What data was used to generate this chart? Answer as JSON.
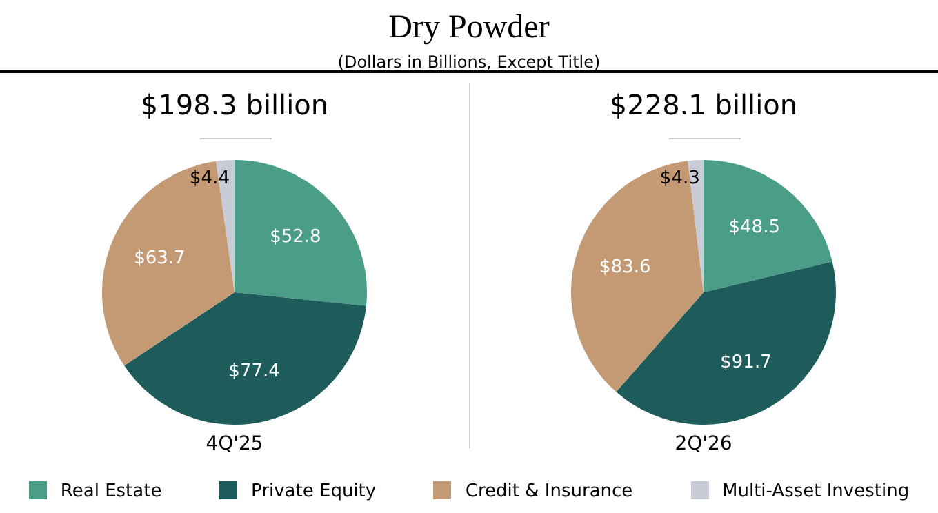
{
  "chart_data": [
    {
      "type": "pie",
      "title": "Dry Powder",
      "subtitle": "(Dollars in Billions, Except Title)",
      "annotations": [
        "$198.3 billion"
      ],
      "xlabel": "4Q'25",
      "categories": [
        "Real Estate",
        "Private Equity",
        "Credit & Insurance",
        "Multi-Asset Investing"
      ],
      "values": [
        52.8,
        77.4,
        63.7,
        4.4
      ],
      "value_labels": [
        "$52.8",
        "$77.4",
        "$63.7",
        "$4.4"
      ],
      "colors": [
        "#4a9e87",
        "#1d5c5a",
        "#c49a74",
        "#c8ccd6"
      ],
      "legend": "bottom"
    },
    {
      "type": "pie",
      "annotations": [
        "$228.1 billion"
      ],
      "xlabel": "2Q'26",
      "categories": [
        null,
        null,
        null,
        null
      ],
      "values": [
        48.5,
        91.7,
        83.6,
        4.3
      ],
      "value_labels": [
        "$48.5",
        "$91.7",
        "$83.6",
        "$4.3"
      ],
      "colors": [
        "#4a9e87",
        "#1d5c5a",
        "#c49a74",
        "#c8ccd6"
      ]
    }
  ]
}
